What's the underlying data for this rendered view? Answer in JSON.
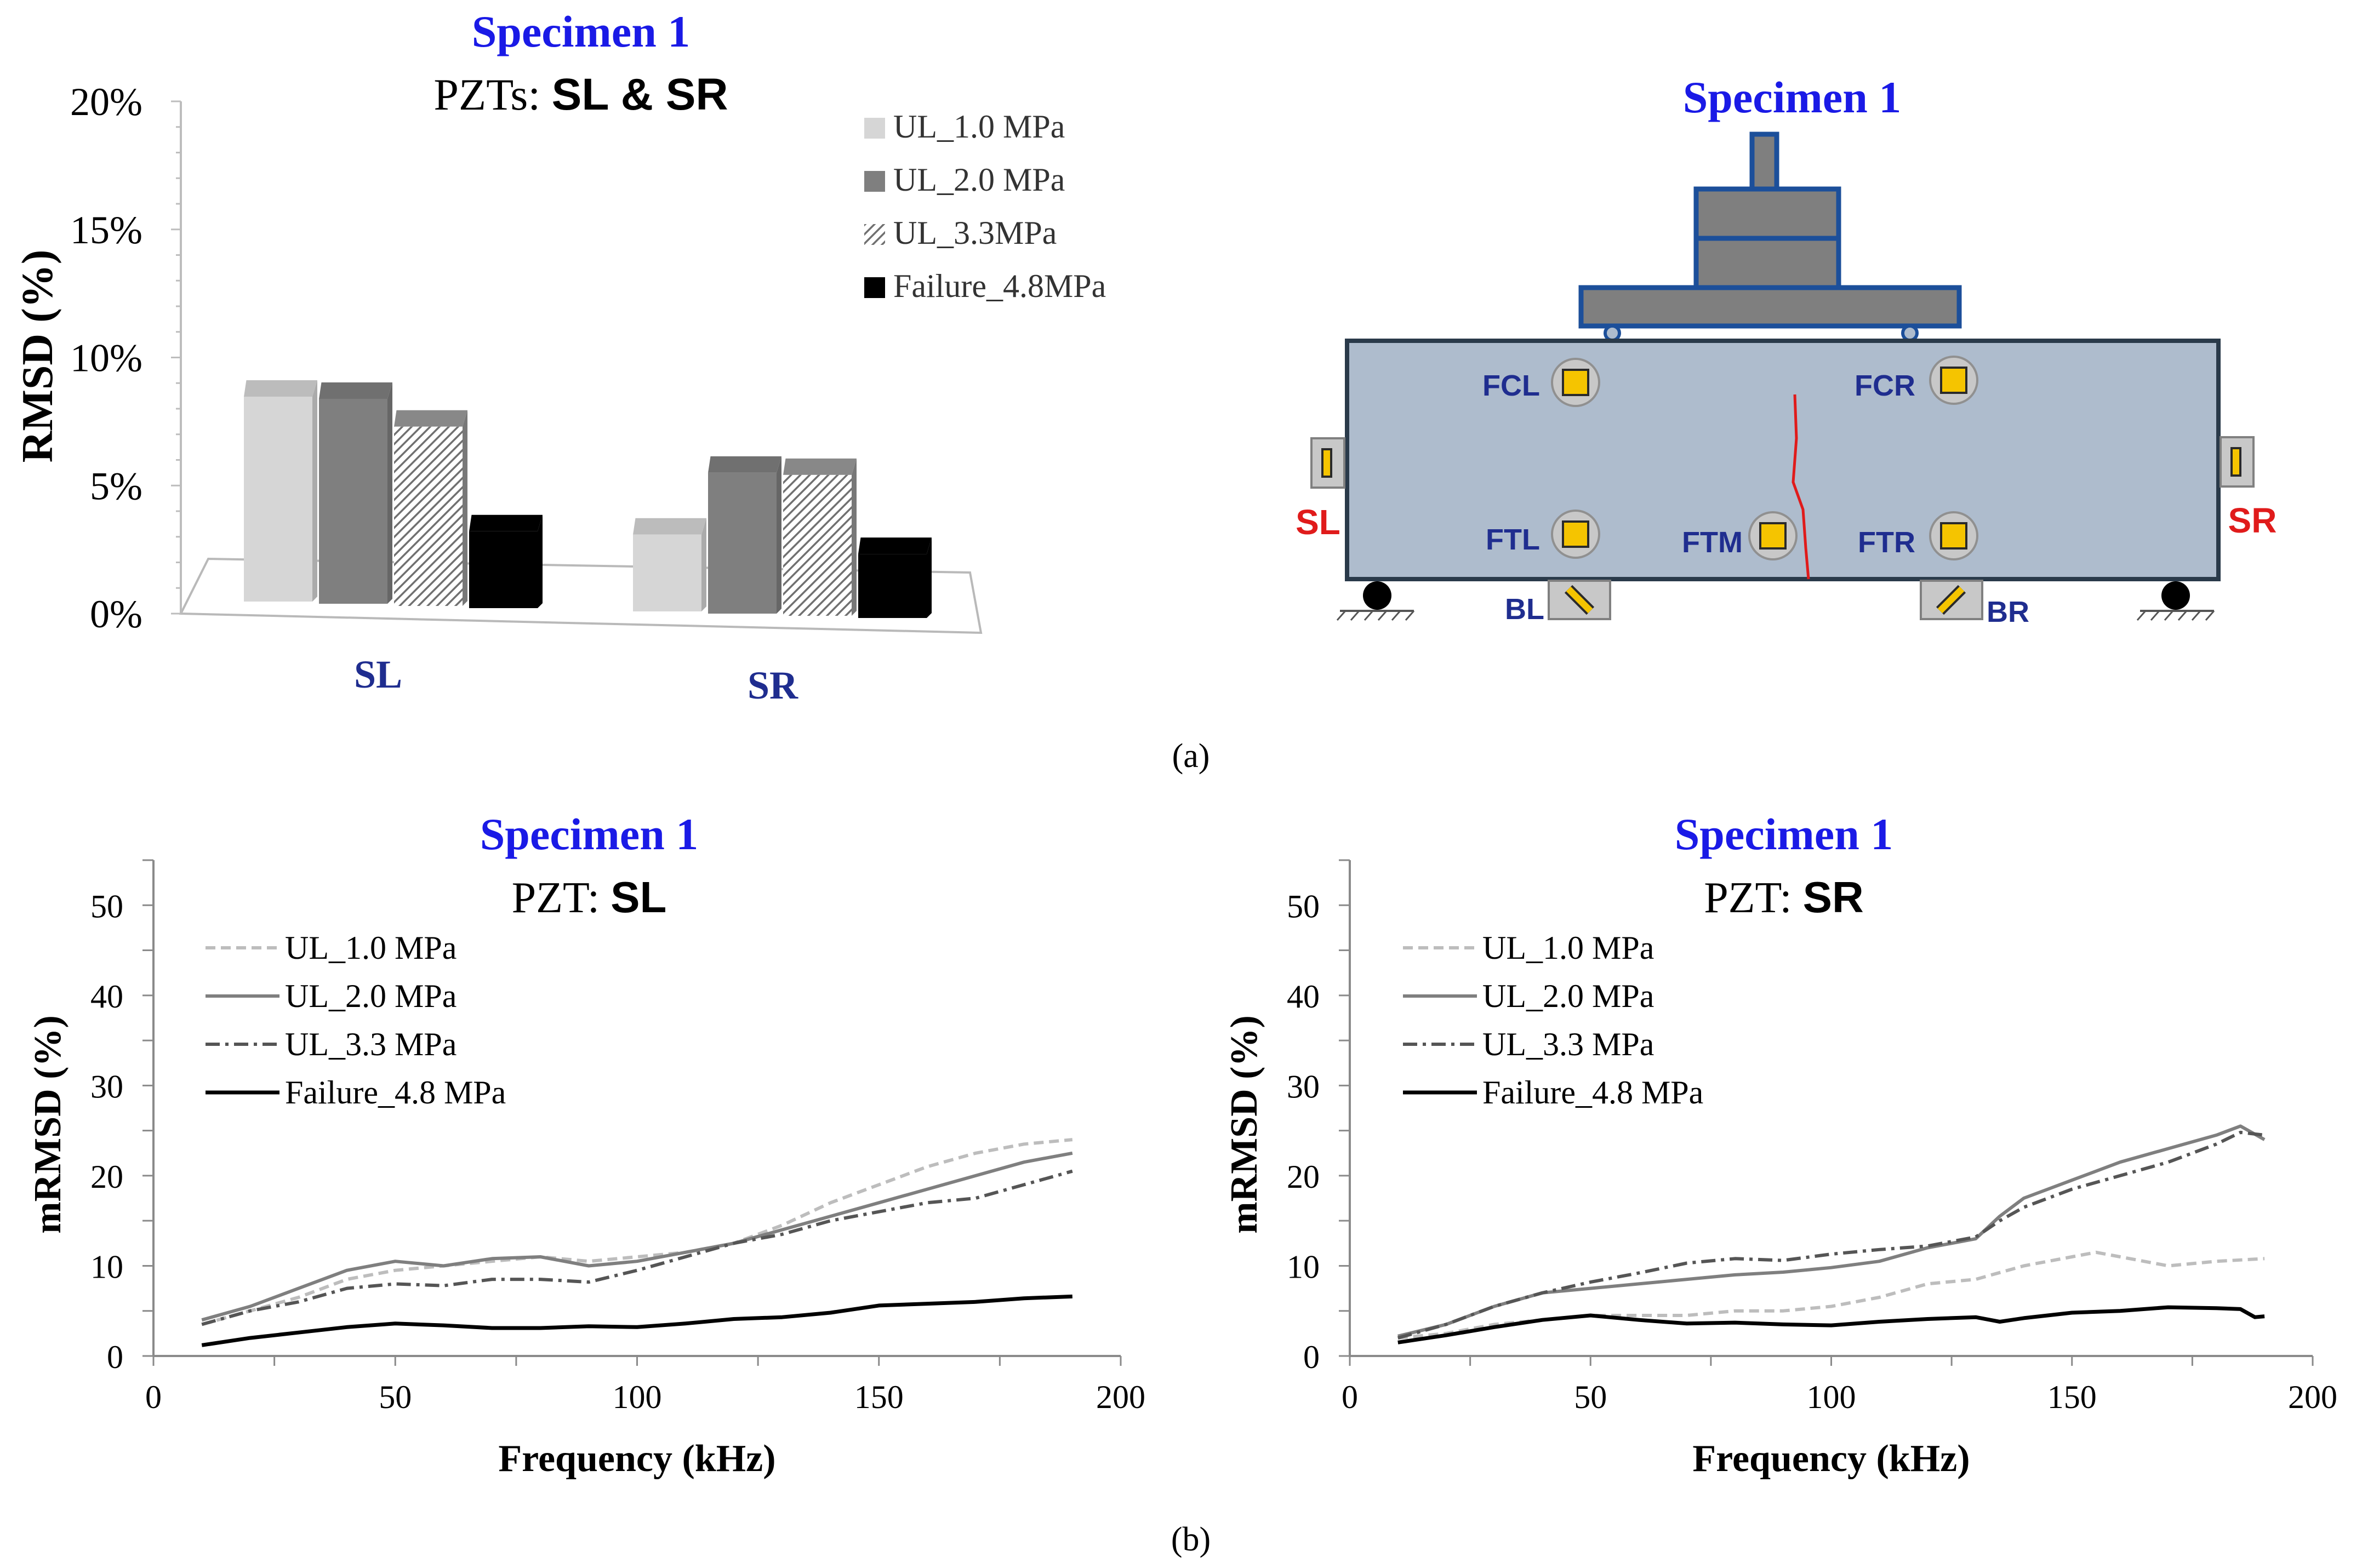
{
  "figure": {
    "label_a": "(a)",
    "label_b": "(b)",
    "colors": {
      "title_blue": "#1a1ae6",
      "label_navy": "#1f2d8f",
      "red": "#e01b1b",
      "beam": "#aebccd",
      "beam_edge": "#2a3a4a",
      "sensor": "#f5c400"
    }
  },
  "chart_data": [
    {
      "type": "bar",
      "title": "Specimen 1",
      "subtitle_prefix": "PZTs: ",
      "subtitle_bold": "SL & SR",
      "ylabel": "RMSD (%)",
      "xlabel": "",
      "ylim": [
        0,
        20
      ],
      "yticks": [
        "0%",
        "5%",
        "10%",
        "15%",
        "20%"
      ],
      "categories": [
        "SL",
        "SR"
      ],
      "legend_position": "top-right",
      "series": [
        {
          "name": "UL_1.0 MPa",
          "values": [
            8.0,
            3.0
          ],
          "color": "#d6d6d6"
        },
        {
          "name": "UL_2.0 MPa",
          "values": [
            8.0,
            5.5
          ],
          "color": "#7f7f7f"
        },
        {
          "name": "UL_3.3MPa",
          "values": [
            7.0,
            5.5
          ],
          "color": "#a0a0a0",
          "pattern": "hatch"
        },
        {
          "name": "Failure_4.8MPa",
          "values": [
            3.0,
            2.5
          ],
          "color": "#000000"
        }
      ]
    },
    {
      "type": "line",
      "title": "Specimen 1",
      "subtitle_prefix": "PZT: ",
      "subtitle_bold": "SL",
      "xlabel": "Frequency (kHz)",
      "ylabel": "mRMSD (%)",
      "xlim": [
        0,
        200
      ],
      "ylim": [
        0,
        55
      ],
      "xticks": [
        0,
        50,
        100,
        150,
        200
      ],
      "yticks": [
        0,
        10,
        20,
        30,
        40,
        50
      ],
      "legend_position": "top-left",
      "series": [
        {
          "name": "UL_1.0 MPa",
          "style": "dash",
          "color": "#bdbdbd",
          "x": [
            10,
            20,
            30,
            40,
            50,
            60,
            70,
            80,
            90,
            100,
            110,
            120,
            130,
            140,
            150,
            160,
            170,
            180,
            190
          ],
          "y": [
            3.5,
            5,
            6.5,
            8.5,
            9.5,
            10,
            10.5,
            11,
            10.5,
            11,
            11.5,
            12.5,
            14.5,
            17,
            19,
            21,
            22.5,
            23.5,
            24
          ]
        },
        {
          "name": "UL_2.0 MPa",
          "style": "solid",
          "color": "#7f7f7f",
          "x": [
            10,
            20,
            30,
            40,
            50,
            60,
            70,
            80,
            90,
            100,
            110,
            120,
            130,
            140,
            150,
            160,
            170,
            180,
            190
          ],
          "y": [
            4,
            5.5,
            7.5,
            9.5,
            10.5,
            10,
            10.8,
            11,
            10,
            10.5,
            11.5,
            12.5,
            14,
            15.5,
            17,
            18.5,
            20,
            21.5,
            22.5
          ]
        },
        {
          "name": "UL_3.3 MPa",
          "style": "dashdot",
          "color": "#555555",
          "x": [
            10,
            20,
            30,
            40,
            50,
            60,
            70,
            80,
            90,
            100,
            110,
            120,
            130,
            140,
            150,
            160,
            170,
            180,
            190
          ],
          "y": [
            3.5,
            5,
            6,
            7.5,
            8,
            7.8,
            8.5,
            8.5,
            8.2,
            9.5,
            11,
            12.5,
            13.5,
            15,
            16,
            17,
            17.5,
            19,
            20.5
          ]
        },
        {
          "name": "Failure_4.8 MPa",
          "style": "solid-bold",
          "color": "#000000",
          "x": [
            10,
            20,
            30,
            40,
            50,
            60,
            70,
            80,
            90,
            100,
            110,
            120,
            130,
            140,
            150,
            160,
            170,
            180,
            190
          ],
          "y": [
            1.2,
            2,
            2.6,
            3.2,
            3.6,
            3.4,
            3.1,
            3.1,
            3.3,
            3.2,
            3.6,
            4.1,
            4.3,
            4.8,
            5.6,
            5.8,
            6,
            6.4,
            6.6
          ]
        }
      ]
    },
    {
      "type": "line",
      "title": "Specimen 1",
      "subtitle_prefix": "PZT: ",
      "subtitle_bold": "SR",
      "xlabel": "Frequency (kHz)",
      "ylabel": "mRMSD (%)",
      "xlim": [
        0,
        200
      ],
      "ylim": [
        0,
        55
      ],
      "xticks": [
        0,
        50,
        100,
        150,
        200
      ],
      "yticks": [
        0,
        10,
        20,
        30,
        40,
        50
      ],
      "legend_position": "top-left",
      "series": [
        {
          "name": "UL_1.0 MPa",
          "style": "dash",
          "color": "#bdbdbd",
          "x": [
            10,
            20,
            30,
            40,
            50,
            60,
            70,
            80,
            90,
            100,
            110,
            120,
            130,
            140,
            150,
            155,
            160,
            170,
            180,
            190
          ],
          "y": [
            2,
            2.5,
            3.5,
            4,
            4.5,
            4.5,
            4.5,
            5,
            5,
            5.5,
            6.5,
            8,
            8.5,
            10,
            11,
            11.5,
            11,
            10,
            10.5,
            10.8
          ]
        },
        {
          "name": "UL_2.0 MPa",
          "style": "solid",
          "color": "#7f7f7f",
          "x": [
            10,
            20,
            30,
            40,
            50,
            60,
            70,
            80,
            90,
            100,
            110,
            120,
            130,
            135,
            140,
            150,
            160,
            170,
            180,
            185,
            190
          ],
          "y": [
            2.2,
            3.5,
            5.5,
            7,
            7.5,
            8,
            8.5,
            9,
            9.3,
            9.8,
            10.5,
            12,
            13,
            15.5,
            17.5,
            19.5,
            21.5,
            23,
            24.5,
            25.5,
            24
          ]
        },
        {
          "name": "UL_3.3 MPa",
          "style": "dashdot",
          "color": "#555555",
          "x": [
            10,
            20,
            30,
            40,
            50,
            60,
            70,
            80,
            90,
            100,
            110,
            120,
            130,
            135,
            140,
            150,
            160,
            170,
            180,
            185,
            190
          ],
          "y": [
            2,
            3.5,
            5.5,
            7,
            8.2,
            9.2,
            10.3,
            10.8,
            10.6,
            11.3,
            11.8,
            12.2,
            13.2,
            15,
            16.5,
            18.5,
            20,
            21.5,
            23.5,
            24.8,
            24.5
          ]
        },
        {
          "name": "Failure_4.8 MPa",
          "style": "solid-bold",
          "color": "#000000",
          "x": [
            10,
            20,
            30,
            40,
            50,
            60,
            70,
            80,
            90,
            100,
            110,
            120,
            130,
            135,
            140,
            150,
            160,
            170,
            180,
            185,
            188,
            190
          ],
          "y": [
            1.5,
            2.3,
            3.2,
            4,
            4.5,
            4,
            3.6,
            3.7,
            3.5,
            3.4,
            3.8,
            4.1,
            4.3,
            3.8,
            4.2,
            4.8,
            5,
            5.4,
            5.3,
            5.2,
            4.3,
            4.4
          ]
        }
      ]
    }
  ],
  "beam_diagram": {
    "title": "Specimen 1",
    "sensors": [
      "FCL",
      "FCR",
      "FTL",
      "FTM",
      "FTR"
    ],
    "side_sensors": [
      "SL",
      "SR"
    ],
    "bottom_sensors": [
      "BL",
      "BR"
    ]
  }
}
